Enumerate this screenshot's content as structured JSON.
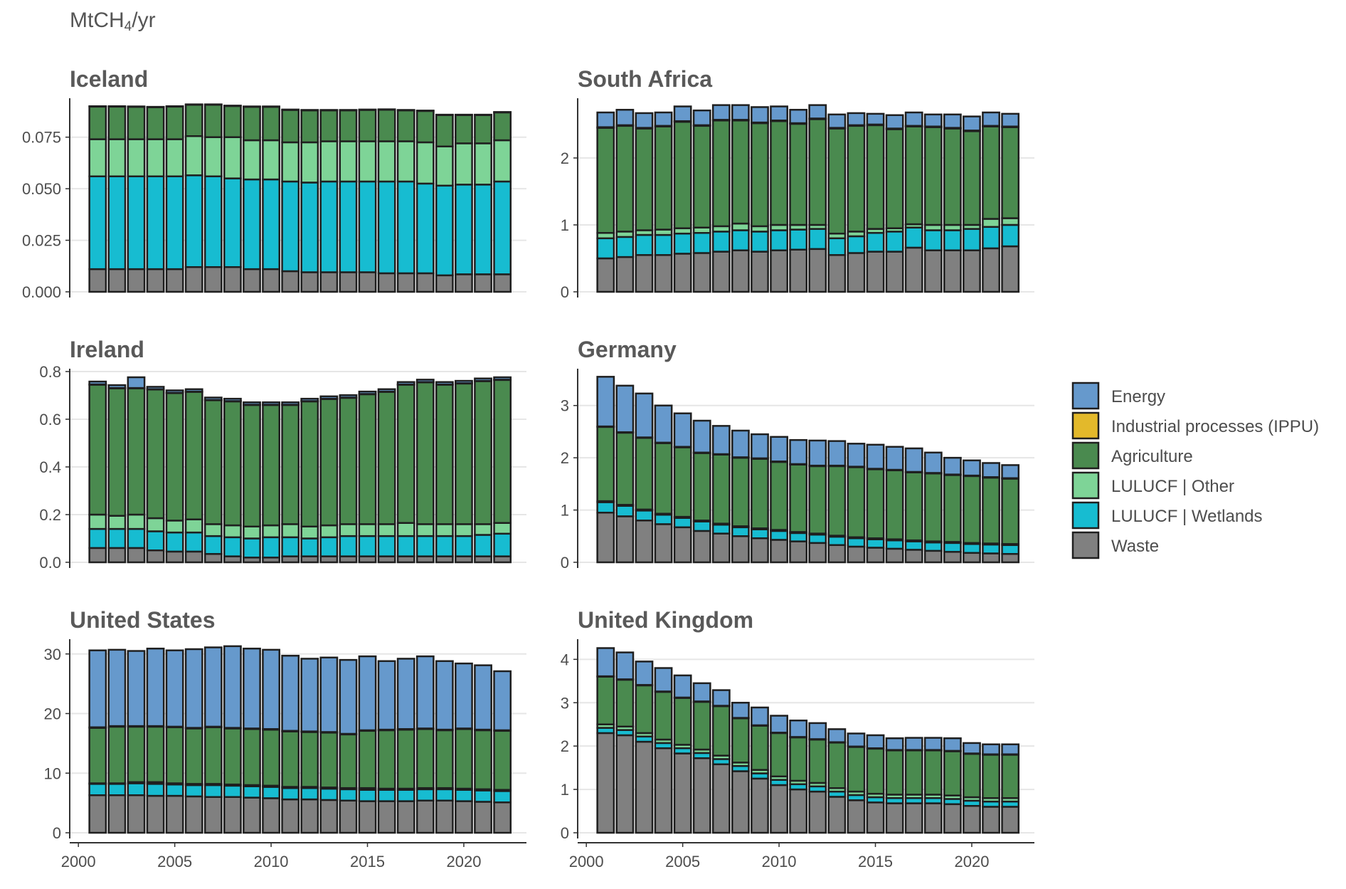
{
  "chart_data": {
    "type": "bar",
    "stacked": true,
    "unit_label": {
      "base": "MtCH",
      "subscript": "4",
      "suffix": "/yr"
    },
    "years": [
      2001,
      2002,
      2003,
      2004,
      2005,
      2006,
      2007,
      2008,
      2009,
      2010,
      2011,
      2012,
      2013,
      2014,
      2015,
      2016,
      2017,
      2018,
      2019,
      2020,
      2021,
      2022
    ],
    "x_ticks": [
      2000,
      2005,
      2010,
      2015,
      2020
    ],
    "x_tick_labels": [
      "2000",
      "2005",
      "2010",
      "2015",
      "2020"
    ],
    "legend": {
      "position": "right",
      "items": [
        {
          "key": "energy",
          "label": "Energy",
          "color": "#6699CC"
        },
        {
          "key": "ippu",
          "label": "Industrial processes (IPPU)",
          "color": "#E3B92B"
        },
        {
          "key": "agriculture",
          "label": "Agriculture",
          "color": "#4A8A4F"
        },
        {
          "key": "lulucf_other",
          "label": "LULUCF | Other",
          "color": "#7ED497"
        },
        {
          "key": "lulucf_wetlands",
          "label": "LULUCF | Wetlands",
          "color": "#17BCD1"
        },
        {
          "key": "waste",
          "label": "Waste",
          "color": "#808080"
        }
      ]
    },
    "panels": [
      {
        "title": "Iceland",
        "ylim": [
          0,
          0.0925
        ],
        "y_ticks": [
          0,
          0.025,
          0.05,
          0.075
        ],
        "y_tick_labels": [
          "0.000",
          "0.025",
          "0.050",
          "0.075"
        ],
        "series": {
          "waste": [
            0.011,
            0.011,
            0.011,
            0.011,
            0.011,
            0.012,
            0.012,
            0.012,
            0.011,
            0.011,
            0.01,
            0.0095,
            0.0095,
            0.0095,
            0.0095,
            0.009,
            0.009,
            0.009,
            0.008,
            0.0085,
            0.0085,
            0.0085
          ],
          "lulucf_wetlands": [
            0.045,
            0.045,
            0.045,
            0.045,
            0.045,
            0.0445,
            0.044,
            0.043,
            0.0435,
            0.0435,
            0.0435,
            0.0435,
            0.044,
            0.044,
            0.044,
            0.0445,
            0.0445,
            0.0435,
            0.0435,
            0.0435,
            0.0435,
            0.045
          ],
          "lulucf_other": [
            0.018,
            0.018,
            0.018,
            0.018,
            0.018,
            0.019,
            0.019,
            0.02,
            0.019,
            0.019,
            0.019,
            0.0195,
            0.0195,
            0.0195,
            0.0195,
            0.0195,
            0.0195,
            0.02,
            0.019,
            0.02,
            0.02,
            0.02
          ],
          "agriculture": [
            0.0158,
            0.0158,
            0.0157,
            0.0155,
            0.0158,
            0.0152,
            0.0157,
            0.0151,
            0.0162,
            0.0162,
            0.0157,
            0.0155,
            0.015,
            0.015,
            0.0152,
            0.0153,
            0.015,
            0.0152,
            0.0152,
            0.0137,
            0.0137,
            0.0135
          ],
          "ippu": [
            0,
            0,
            0,
            0,
            0,
            0,
            0,
            0,
            0,
            0,
            0,
            0,
            0,
            0,
            0,
            0,
            0,
            0,
            0,
            0,
            0,
            0
          ],
          "energy": [
            0.0002,
            0.0002,
            0.0002,
            0.0002,
            0.0002,
            0.0002,
            0.0002,
            0.0002,
            0.0002,
            0.0002,
            0.0002,
            0.0002,
            0.0002,
            0.0002,
            0.0002,
            0.0002,
            0.0002,
            0.0002,
            0.0002,
            0.0002,
            0.0002,
            0.0002
          ]
        }
      },
      {
        "title": "South Africa",
        "ylim": [
          0,
          2.85
        ],
        "y_ticks": [
          0,
          1,
          2
        ],
        "y_tick_labels": [
          "0",
          "1",
          "2"
        ],
        "series": {
          "waste": [
            0.5,
            0.52,
            0.55,
            0.55,
            0.57,
            0.58,
            0.6,
            0.62,
            0.6,
            0.62,
            0.63,
            0.64,
            0.55,
            0.58,
            0.6,
            0.6,
            0.66,
            0.62,
            0.62,
            0.62,
            0.65,
            0.68
          ],
          "lulucf_wetlands": [
            0.3,
            0.3,
            0.3,
            0.3,
            0.3,
            0.3,
            0.3,
            0.3,
            0.3,
            0.3,
            0.3,
            0.3,
            0.25,
            0.25,
            0.28,
            0.3,
            0.3,
            0.3,
            0.3,
            0.32,
            0.32,
            0.32
          ],
          "lulucf_other": [
            0.08,
            0.08,
            0.07,
            0.08,
            0.08,
            0.08,
            0.08,
            0.1,
            0.08,
            0.08,
            0.07,
            0.06,
            0.07,
            0.07,
            0.06,
            0.05,
            0.05,
            0.08,
            0.08,
            0.06,
            0.12,
            0.1
          ],
          "agriculture": [
            1.57,
            1.58,
            1.52,
            1.54,
            1.59,
            1.52,
            1.58,
            1.54,
            1.54,
            1.55,
            1.51,
            1.58,
            1.57,
            1.58,
            1.55,
            1.48,
            1.46,
            1.46,
            1.44,
            1.4,
            1.38,
            1.36
          ],
          "ippu": [
            0.01,
            0.01,
            0.01,
            0.01,
            0.01,
            0.01,
            0.01,
            0.01,
            0.01,
            0.01,
            0.01,
            0.01,
            0.01,
            0.01,
            0.01,
            0.01,
            0.01,
            0.01,
            0.01,
            0.01,
            0.01,
            0.01
          ],
          "energy": [
            0.22,
            0.23,
            0.22,
            0.2,
            0.22,
            0.22,
            0.22,
            0.22,
            0.23,
            0.21,
            0.2,
            0.2,
            0.2,
            0.18,
            0.16,
            0.2,
            0.2,
            0.18,
            0.2,
            0.21,
            0.2,
            0.19
          ]
        }
      },
      {
        "title": "Ireland",
        "ylim": [
          0,
          0.8
        ],
        "y_ticks": [
          0,
          0.2,
          0.4,
          0.6,
          0.8
        ],
        "y_tick_labels": [
          "0.0",
          "0.2",
          "0.4",
          "0.6",
          "0.8"
        ],
        "series": {
          "waste": [
            0.06,
            0.06,
            0.06,
            0.05,
            0.045,
            0.045,
            0.035,
            0.025,
            0.02,
            0.02,
            0.025,
            0.025,
            0.025,
            0.025,
            0.025,
            0.025,
            0.025,
            0.025,
            0.025,
            0.025,
            0.025,
            0.025
          ],
          "lulucf_wetlands": [
            0.08,
            0.08,
            0.08,
            0.08,
            0.08,
            0.08,
            0.075,
            0.08,
            0.08,
            0.085,
            0.08,
            0.075,
            0.08,
            0.085,
            0.085,
            0.085,
            0.085,
            0.085,
            0.085,
            0.085,
            0.09,
            0.095
          ],
          "lulucf_other": [
            0.06,
            0.055,
            0.06,
            0.055,
            0.05,
            0.055,
            0.05,
            0.05,
            0.05,
            0.05,
            0.055,
            0.05,
            0.05,
            0.05,
            0.05,
            0.05,
            0.055,
            0.05,
            0.05,
            0.05,
            0.045,
            0.045
          ],
          "agriculture": [
            0.545,
            0.535,
            0.53,
            0.54,
            0.535,
            0.535,
            0.52,
            0.52,
            0.51,
            0.505,
            0.5,
            0.525,
            0.53,
            0.53,
            0.545,
            0.555,
            0.58,
            0.595,
            0.585,
            0.59,
            0.6,
            0.6
          ],
          "ippu": [
            0.001,
            0.001,
            0.001,
            0.001,
            0.001,
            0.001,
            0.001,
            0.001,
            0.001,
            0.001,
            0.001,
            0.001,
            0.001,
            0.001,
            0.001,
            0.001,
            0.001,
            0.001,
            0.001,
            0.001,
            0.001,
            0.001
          ],
          "energy": [
            0.012,
            0.012,
            0.045,
            0.01,
            0.01,
            0.01,
            0.01,
            0.01,
            0.01,
            0.01,
            0.01,
            0.01,
            0.01,
            0.01,
            0.01,
            0.01,
            0.01,
            0.01,
            0.01,
            0.01,
            0.01,
            0.01
          ]
        }
      },
      {
        "title": "Germany",
        "ylim": [
          0,
          3.65
        ],
        "y_ticks": [
          0,
          1,
          2,
          3
        ],
        "y_tick_labels": [
          "0",
          "1",
          "2",
          "3"
        ],
        "series": {
          "waste": [
            0.95,
            0.88,
            0.8,
            0.73,
            0.67,
            0.6,
            0.55,
            0.5,
            0.46,
            0.43,
            0.4,
            0.37,
            0.33,
            0.3,
            0.28,
            0.26,
            0.24,
            0.22,
            0.2,
            0.18,
            0.17,
            0.16
          ],
          "lulucf_wetlands": [
            0.2,
            0.2,
            0.19,
            0.18,
            0.18,
            0.18,
            0.17,
            0.17,
            0.17,
            0.17,
            0.16,
            0.16,
            0.16,
            0.16,
            0.16,
            0.16,
            0.16,
            0.16,
            0.17,
            0.17,
            0.17,
            0.17
          ],
          "lulucf_other": [
            0.02,
            0.02,
            0.02,
            0.02,
            0.02,
            0.02,
            0.02,
            0.02,
            0.02,
            0.02,
            0.02,
            0.02,
            0.02,
            0.02,
            0.02,
            0.02,
            0.02,
            0.02,
            0.02,
            0.02,
            0.02,
            0.02
          ],
          "agriculture": [
            1.42,
            1.38,
            1.37,
            1.35,
            1.33,
            1.29,
            1.32,
            1.31,
            1.33,
            1.3,
            1.29,
            1.29,
            1.33,
            1.34,
            1.32,
            1.32,
            1.3,
            1.3,
            1.28,
            1.28,
            1.26,
            1.25
          ],
          "ippu": [
            0.01,
            0.01,
            0.01,
            0.01,
            0.01,
            0.01,
            0.01,
            0.01,
            0.01,
            0.01,
            0.01,
            0.01,
            0.01,
            0.01,
            0.01,
            0.01,
            0.01,
            0.01,
            0.01,
            0.01,
            0.01,
            0.01
          ],
          "energy": [
            0.95,
            0.89,
            0.84,
            0.71,
            0.64,
            0.61,
            0.54,
            0.51,
            0.46,
            0.47,
            0.46,
            0.48,
            0.47,
            0.44,
            0.46,
            0.44,
            0.45,
            0.39,
            0.32,
            0.29,
            0.27,
            0.25
          ]
        }
      },
      {
        "title": "United States",
        "ylim": [
          0,
          32
        ],
        "y_ticks": [
          0,
          10,
          20,
          30
        ],
        "y_tick_labels": [
          "0",
          "10",
          "20",
          "30"
        ],
        "series": {
          "waste": [
            6.3,
            6.3,
            6.3,
            6.2,
            6.2,
            6.1,
            6.0,
            6.0,
            5.9,
            5.8,
            5.6,
            5.6,
            5.5,
            5.4,
            5.3,
            5.3,
            5.3,
            5.4,
            5.4,
            5.3,
            5.2,
            5.1
          ],
          "lulucf_wetlands": [
            1.9,
            1.9,
            2.0,
            2.0,
            1.9,
            1.9,
            2.0,
            1.9,
            1.9,
            1.9,
            1.9,
            1.9,
            1.9,
            1.9,
            1.9,
            1.9,
            1.9,
            1.9,
            1.9,
            1.9,
            1.9,
            1.9
          ],
          "lulucf_other": [
            0.1,
            0.1,
            0.2,
            0.3,
            0.2,
            0.2,
            0.2,
            0.2,
            0.2,
            0.2,
            0.2,
            0.2,
            0.2,
            0.2,
            0.3,
            0.2,
            0.2,
            0.2,
            0.2,
            0.2,
            0.2,
            0.2
          ],
          "agriculture": [
            9.3,
            9.5,
            9.3,
            9.3,
            9.4,
            9.3,
            9.5,
            9.4,
            9.4,
            9.4,
            9.3,
            9.2,
            9.2,
            9.0,
            9.6,
            9.8,
            9.9,
            9.9,
            9.7,
            10.0,
            9.9,
            9.9
          ],
          "ippu": [
            0.1,
            0.1,
            0.1,
            0.1,
            0.1,
            0.1,
            0.1,
            0.1,
            0.1,
            0.1,
            0.1,
            0.1,
            0.1,
            0.1,
            0.1,
            0.1,
            0.1,
            0.1,
            0.1,
            0.1,
            0.1,
            0.1
          ],
          "energy": [
            12.9,
            12.8,
            12.6,
            13.0,
            12.8,
            13.2,
            13.3,
            13.7,
            13.4,
            13.3,
            12.6,
            12.2,
            12.5,
            12.4,
            12.4,
            11.5,
            11.8,
            12.1,
            11.5,
            10.9,
            10.8,
            9.9
          ]
        }
      },
      {
        "title": "United Kingdom",
        "ylim": [
          0,
          4.4
        ],
        "y_ticks": [
          0,
          1,
          2,
          3,
          4
        ],
        "y_tick_labels": [
          "0",
          "1",
          "2",
          "3",
          "4"
        ],
        "series": {
          "waste": [
            2.3,
            2.25,
            2.1,
            1.95,
            1.83,
            1.72,
            1.58,
            1.42,
            1.25,
            1.1,
            1.0,
            0.95,
            0.83,
            0.75,
            0.7,
            0.68,
            0.68,
            0.68,
            0.66,
            0.62,
            0.6,
            0.6
          ],
          "lulucf_wetlands": [
            0.12,
            0.12,
            0.12,
            0.12,
            0.12,
            0.12,
            0.12,
            0.12,
            0.12,
            0.12,
            0.12,
            0.12,
            0.12,
            0.12,
            0.12,
            0.12,
            0.12,
            0.12,
            0.12,
            0.12,
            0.12,
            0.12
          ],
          "lulucf_other": [
            0.08,
            0.08,
            0.08,
            0.08,
            0.08,
            0.08,
            0.08,
            0.08,
            0.08,
            0.08,
            0.08,
            0.08,
            0.08,
            0.08,
            0.08,
            0.08,
            0.08,
            0.08,
            0.08,
            0.08,
            0.08,
            0.08
          ],
          "agriculture": [
            1.1,
            1.08,
            1.1,
            1.1,
            1.08,
            1.1,
            1.14,
            1.02,
            1.02,
            1.0,
            1.0,
            1.0,
            1.05,
            1.03,
            1.04,
            1.02,
            1.02,
            1.02,
            1.02,
            1.0,
            1.0,
            1.0
          ],
          "ippu": [
            0.01,
            0.01,
            0.01,
            0.01,
            0.01,
            0.01,
            0.01,
            0.01,
            0.01,
            0.01,
            0.01,
            0.01,
            0.01,
            0.01,
            0.01,
            0.01,
            0.01,
            0.01,
            0.01,
            0.01,
            0.01,
            0.01
          ],
          "energy": [
            0.65,
            0.62,
            0.54,
            0.54,
            0.51,
            0.42,
            0.36,
            0.35,
            0.41,
            0.39,
            0.38,
            0.37,
            0.3,
            0.3,
            0.3,
            0.27,
            0.28,
            0.28,
            0.29,
            0.24,
            0.23,
            0.23
          ]
        }
      }
    ]
  }
}
